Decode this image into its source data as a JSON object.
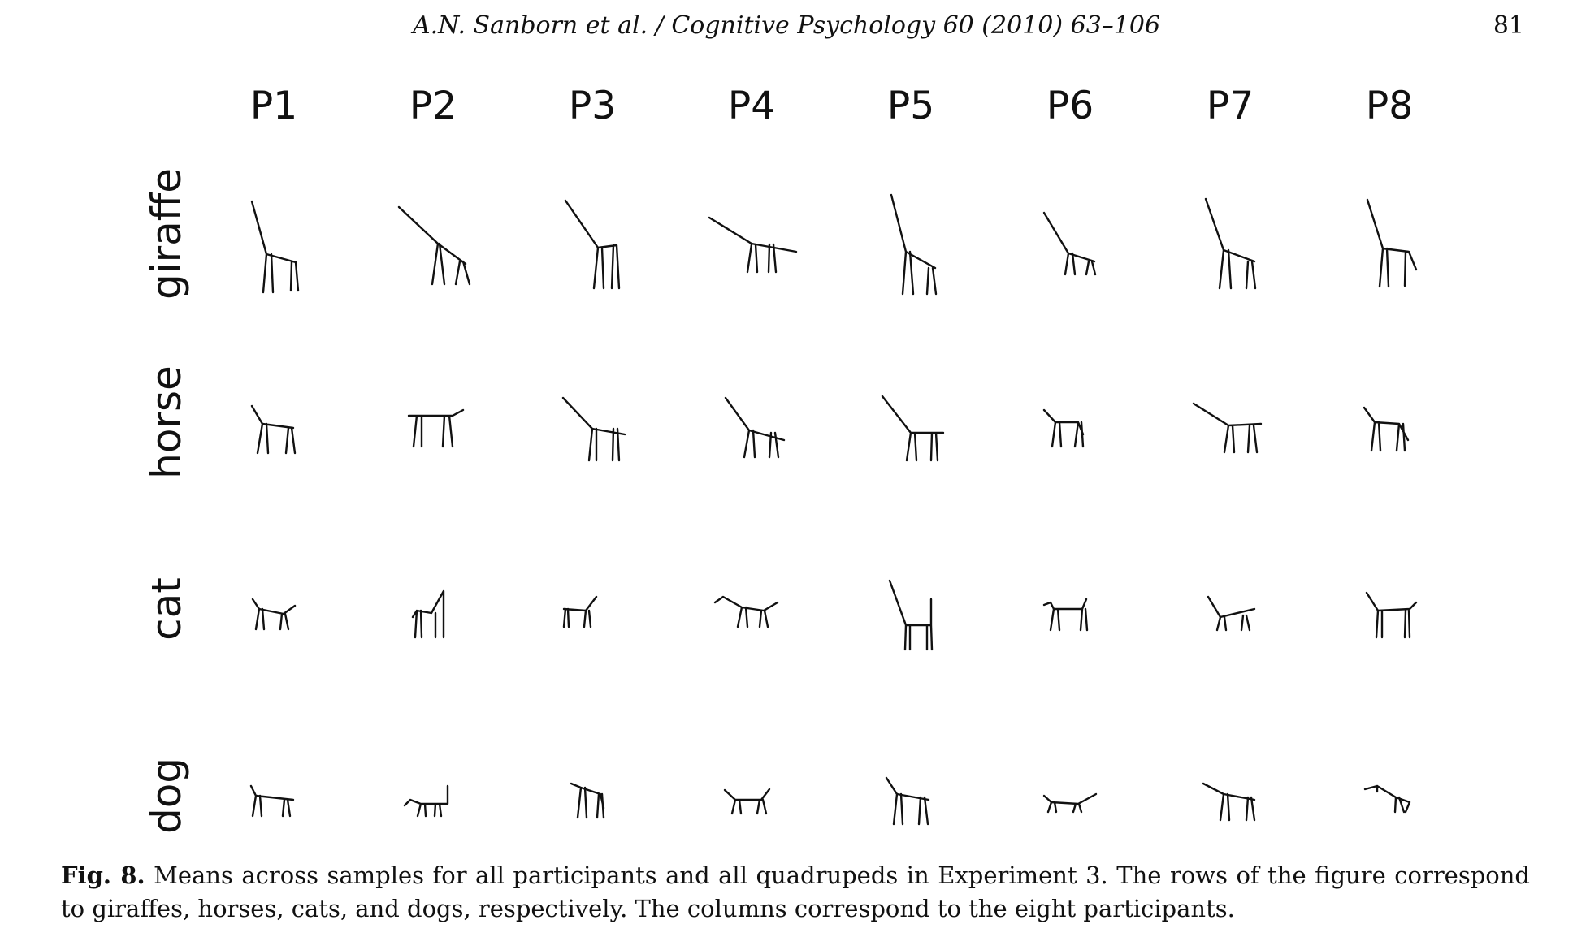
{
  "header": {
    "journal": "A.N. Sanborn et al. / Cognitive Psychology 60 (2010) 63–106",
    "page_number": "81"
  },
  "figure": {
    "columns": [
      "P1",
      "P2",
      "P3",
      "P4",
      "P5",
      "P6",
      "P7",
      "P8"
    ],
    "rows": [
      "giraffe",
      "horse",
      "cat",
      "dog"
    ]
  },
  "caption": {
    "label": "Fig. 8.",
    "text": "Means across samples for all participants and all quadrupeds in Experiment 3. The rows of the figure correspond to giraffes, horses, cats, and dogs, respectively. The columns correspond to the eight participants."
  }
}
